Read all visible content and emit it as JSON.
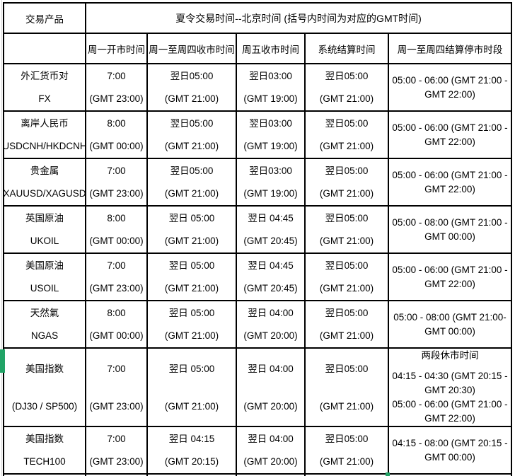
{
  "table": {
    "corner_header": "交易产品",
    "main_header": "夏令交易时间--北京时间 (括号内时间为对应的GMT时间)",
    "sub_headers": [
      "周一开市时间",
      "周一至周四收市时间",
      "周五收市时间",
      "系统结算时间",
      "周一至周四结算停市时段"
    ],
    "rows": [
      {
        "product_name": "外汇货币对",
        "product_code": "FX",
        "open_time": "7:00",
        "open_gmt": "(GMT 23:00)",
        "close_mon_thu_time": "翌日05:00",
        "close_mon_thu_gmt": "(GMT 21:00)",
        "close_fri_time": "翌日03:00",
        "close_fri_gmt": "(GMT 19:00)",
        "settle_time": "翌日05:00",
        "settle_gmt": "(GMT 21:00)",
        "halt_1": "05:00 - 06:00 (GMT 21:00 - GMT 22:00)"
      },
      {
        "product_name": "离岸人民币",
        "product_code": "USDCNH/HKDCNH",
        "open_time": "8:00",
        "open_gmt": "(GMT 00:00)",
        "close_mon_thu_time": "翌日05:00",
        "close_mon_thu_gmt": "(GMT 21:00)",
        "close_fri_time": "翌日03:00",
        "close_fri_gmt": "(GMT 19:00)",
        "settle_time": "翌日05:00",
        "settle_gmt": "(GMT 21:00)",
        "halt_1": "05:00 - 06:00 (GMT 21:00 - GMT 22:00)"
      },
      {
        "product_name": "贵金属",
        "product_code": "XAUUSD/XAGUSD",
        "open_time": "7:00",
        "open_gmt": "(GMT 23:00)",
        "close_mon_thu_time": "翌日05:00",
        "close_mon_thu_gmt": "(GMT 21:00)",
        "close_fri_time": "翌日03:00",
        "close_fri_gmt": "(GMT 19:00)",
        "settle_time": "翌日05:00",
        "settle_gmt": "(GMT 21:00)",
        "halt_1": "05:00 - 06:00 (GMT 21:00 - GMT 22:00)"
      },
      {
        "product_name": "英国原油",
        "product_code": "UKOIL",
        "open_time": "8:00",
        "open_gmt": "(GMT 00:00)",
        "close_mon_thu_time": "翌日 05:00",
        "close_mon_thu_gmt": "(GMT 21:00)",
        "close_fri_time": "翌日 04:45",
        "close_fri_gmt": "(GMT 20:45)",
        "settle_time": "翌日05:00",
        "settle_gmt": "(GMT 21:00)",
        "halt_1": "05:00 - 08:00 (GMT 21:00 - GMT 00:00)"
      },
      {
        "product_name": "美国原油",
        "product_code": "USOIL",
        "open_time": "7:00",
        "open_gmt": "(GMT 23:00)",
        "close_mon_thu_time": "翌日 05:00",
        "close_mon_thu_gmt": "(GMT 21:00)",
        "close_fri_time": "翌日 04:45",
        "close_fri_gmt": "(GMT 20:45)",
        "settle_time": "翌日05:00",
        "settle_gmt": "(GMT 21:00)",
        "halt_1": "05:00 - 06:00 (GMT 21:00 - GMT 22:00)"
      },
      {
        "product_name": "天然氣",
        "product_code": "NGAS",
        "open_time": "8:00",
        "open_gmt": "(GMT 00:00)",
        "close_mon_thu_time": "翌日 05:00",
        "close_mon_thu_gmt": "(GMT 21:00)",
        "close_fri_time": "翌日 04:00",
        "close_fri_gmt": "(GMT 20:00)",
        "settle_time": "翌日05:00",
        "settle_gmt": "(GMT 21:00)",
        "halt_1": "05:00 - 08:00 (GMT 21:00- GMT 00:00)"
      },
      {
        "product_name": "美国指数",
        "product_code": "(DJ30 / SP500)",
        "open_time": "7:00",
        "open_gmt": "(GMT 23:00)",
        "close_mon_thu_time": "翌日 05:00",
        "close_mon_thu_gmt": "(GMT 21:00)",
        "close_fri_time": "翌日 04:00",
        "close_fri_gmt": "(GMT 20:00)",
        "settle_time": "翌日05:00",
        "settle_gmt": "(GMT 21:00)",
        "halt_heading": "两段休市时间",
        "halt_1": "04:15 - 04:30 (GMT 20:15 - GMT 20:30)",
        "halt_2": "05:00 - 06:00 (GMT 21:00 - GMT 22:00)"
      },
      {
        "product_name": "美国指数",
        "product_code": "TECH100",
        "open_time": "7:00",
        "open_gmt": "(GMT 23:00)",
        "close_mon_thu_time": "翌日 04:15",
        "close_mon_thu_gmt": "(GMT 20:15)",
        "close_fri_time": "翌日 04:00",
        "close_fri_gmt": "(GMT 20:00)",
        "settle_time": "翌日05:00",
        "settle_gmt": "(GMT 21:00)",
        "halt_1": "04:15 - 08:00 (GMT 20:15 - GMT 00:00)"
      }
    ]
  },
  "colors": {
    "border": "#000000",
    "selection_green": "#21a366",
    "gridline": "#d6d6d6"
  }
}
